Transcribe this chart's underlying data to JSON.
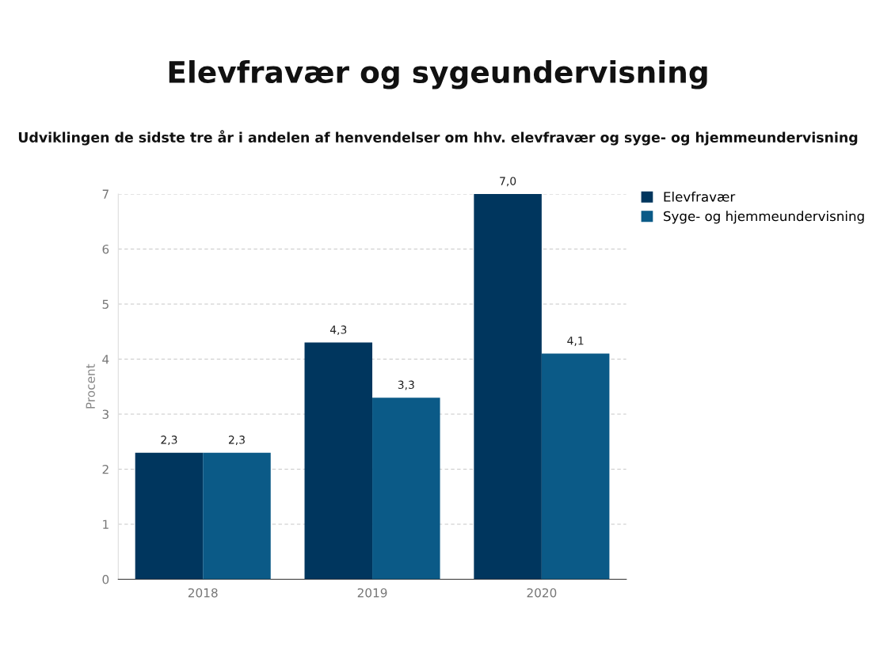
{
  "chart_data": {
    "type": "bar",
    "title": "Elevfravær og sygeundervisning",
    "subtitle": "Udviklingen de sidste tre år i andelen af henvendelser om hhv. elevfravær og syge- og hjemmeundervisning",
    "ylabel": "Procent",
    "categories": [
      "2018",
      "2019",
      "2020"
    ],
    "series": [
      {
        "name": "Elevfravær",
        "color": "#00365e",
        "values": [
          2.3,
          4.3,
          7.0
        ],
        "value_labels": [
          "2,3",
          "4,3",
          "7,0"
        ]
      },
      {
        "name": "Syge- og hjemmeundervisning",
        "color": "#0b5a87",
        "values": [
          2.3,
          3.3,
          4.1
        ],
        "value_labels": [
          "2,3",
          "3,3",
          "4,1"
        ]
      }
    ],
    "ylim": [
      0,
      7
    ],
    "yticks": [
      0,
      1,
      2,
      3,
      4,
      5,
      6,
      7
    ],
    "grid": "y",
    "legend": "top right"
  }
}
